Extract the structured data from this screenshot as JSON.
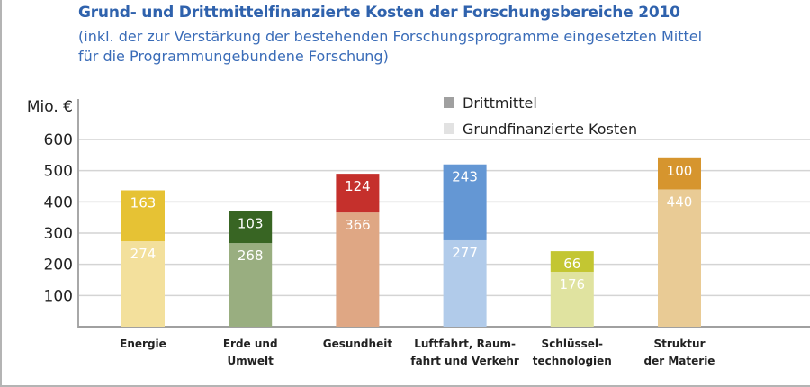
{
  "chart_data": {
    "type": "bar",
    "stacked": true,
    "title": "Grund- und Drittmittelfinanzierte Kosten der Forschungsbereiche 2010",
    "subtitle_lines": [
      "(inkl. der zur Verstärkung der bestehenden Forschungsprogramme eingesetzten Mittel",
      "für die Programmungebundene Forschung)"
    ],
    "ylabel": "Mio. €",
    "xlabel": "",
    "ylim": [
      0,
      600
    ],
    "yticks": [
      100,
      200,
      300,
      400,
      500,
      600
    ],
    "grid": true,
    "legend_placement": "top-right",
    "categories": [
      [
        "Energie"
      ],
      [
        "Erde und",
        "Umwelt"
      ],
      [
        "Gesundheit"
      ],
      [
        "Luftfahrt, Raum-",
        "fahrt und Verkehr"
      ],
      [
        "Schlüssel-",
        "technologien"
      ],
      [
        "Struktur",
        "der Materie"
      ]
    ],
    "series": [
      {
        "name": "Grundfinanzierte Kosten",
        "values": [
          274,
          268,
          366,
          277,
          176,
          440
        ],
        "colors": [
          "#f3e09c",
          "#99ae80",
          "#dfa784",
          "#b1cbea",
          "#e0e3a0",
          "#e9cb95"
        ]
      },
      {
        "name": "Drittmittel",
        "values": [
          163,
          103,
          124,
          243,
          66,
          100
        ],
        "colors": [
          "#e6c234",
          "#386523",
          "#c5302c",
          "#6497d4",
          "#c3c632",
          "#d6952e"
        ]
      }
    ],
    "legend_colors": {
      "Drittmittel": "#a0a0a0",
      "Grundfinanzierte Kosten": "#e2e2e2"
    }
  }
}
